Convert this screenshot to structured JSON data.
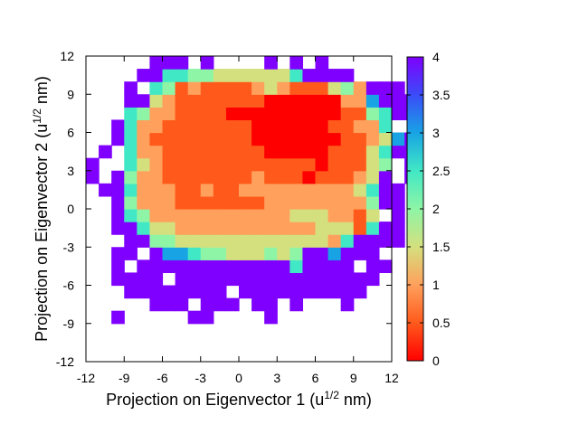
{
  "chart_data": {
    "type": "heatmap",
    "xlabel": {
      "prefix": "Projection on Eigenvector 1 (u",
      "sup": "1/2",
      "suffix": " nm)"
    },
    "ylabel": {
      "prefix": "Projection on Eigenvector 2 (u",
      "sup": "1/2",
      "suffix": " nm)"
    },
    "xlim": [
      -12,
      12
    ],
    "ylim": [
      -12,
      12
    ],
    "xticks": [
      "-12",
      "-9",
      "-6",
      "-3",
      "0",
      "3",
      "6",
      "9",
      "12"
    ],
    "yticks": [
      "-12",
      "-9",
      "-6",
      "-3",
      "0",
      "3",
      "6",
      "9",
      "12"
    ],
    "colorbar": {
      "range": [
        0,
        4
      ],
      "ticks": [
        "0",
        "0.5",
        "1",
        "1.5",
        "2",
        "2.5",
        "3",
        "3.5",
        "4"
      ],
      "colormap": "rainbow (red 0 to violet 4)"
    },
    "grid": false,
    "legend": "none",
    "cell_size": 1,
    "x_start": -11.5,
    "y_start": -9.5,
    "row_order": "bottom to top",
    "missing_value": "0",
    "encoding": "digits 0-8 encode free energy value/2 (0=0.0 ... 8=4.0), '.'=no data",
    "rows": [
      "..........................",
      "..8.....88....8...........",
      ".....888.888.88.8...8.....",
      "...88888888.8888888888....",
      "..8888.8888888888888888...",
      "..8.88888888888858888.88..",
      "..88.866544333434886888...",
      "...8844333333333333258888.",
      "..88533222222222223331588.",
      "..854222222222223332213.8.",
      "..84222111111122222222488.",
      ".885222112112222222223588.",
      "8.8422111111121110111238.8",
      "8..532111111111111011134.8",
      ".8.52211111111000001113588",
      "..852111111110000000112368",
      "..8522111111100000011225..",
      "...54221111000000000114588",
      "...88321111111000000226888",
      "...8.54121111232111342888.",
      "....88554433333358888.....",
      ".....888.8....8.8.8.......",
      "..........................",
      ".........................."
    ]
  }
}
